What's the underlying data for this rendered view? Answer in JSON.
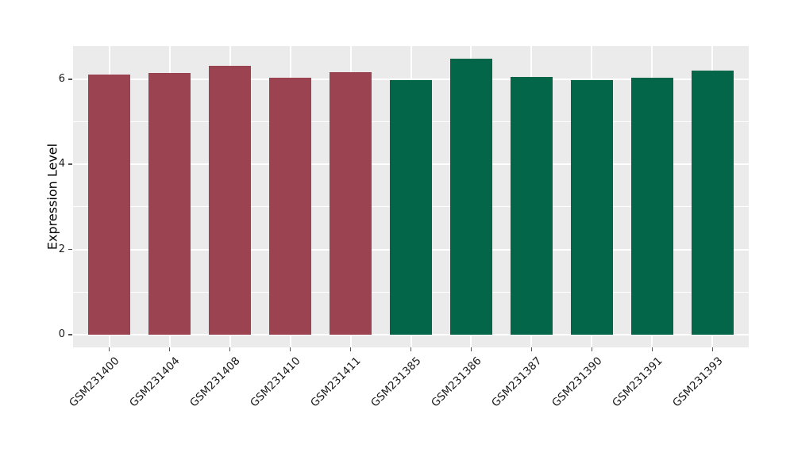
{
  "chart_data": {
    "type": "bar",
    "title": "",
    "xlabel": "",
    "ylabel": "Expression Level",
    "categories": [
      "GSM231400",
      "GSM231404",
      "GSM231408",
      "GSM231410",
      "GSM231411",
      "GSM231385",
      "GSM231386",
      "GSM231387",
      "GSM231390",
      "GSM231391",
      "GSM231393"
    ],
    "values": [
      6.11,
      6.15,
      6.32,
      6.03,
      6.17,
      5.98,
      6.48,
      6.06,
      5.97,
      6.04,
      6.2
    ],
    "bar_colors": [
      "#9C4351",
      "#9C4351",
      "#9C4351",
      "#9C4351",
      "#9C4351",
      "#036648",
      "#036648",
      "#036648",
      "#036648",
      "#036648",
      "#036648"
    ],
    "group_colors": {
      "left_group": "#9C4351",
      "right_group": "#036648"
    },
    "ylim": [
      -0.3,
      6.78
    ],
    "yticks": [
      0,
      2,
      4,
      6
    ],
    "ytick_labels": [
      "0",
      "2",
      "4",
      "6"
    ],
    "yticks_minor": [
      1,
      3,
      5
    ],
    "bar_width_fraction": 0.7,
    "grid": "on",
    "legend": "none",
    "panel_bg": "#EBEBEB",
    "grid_color": "#FFFFFF",
    "tick_color": "#555555",
    "text_color": "#1A1A1A"
  }
}
